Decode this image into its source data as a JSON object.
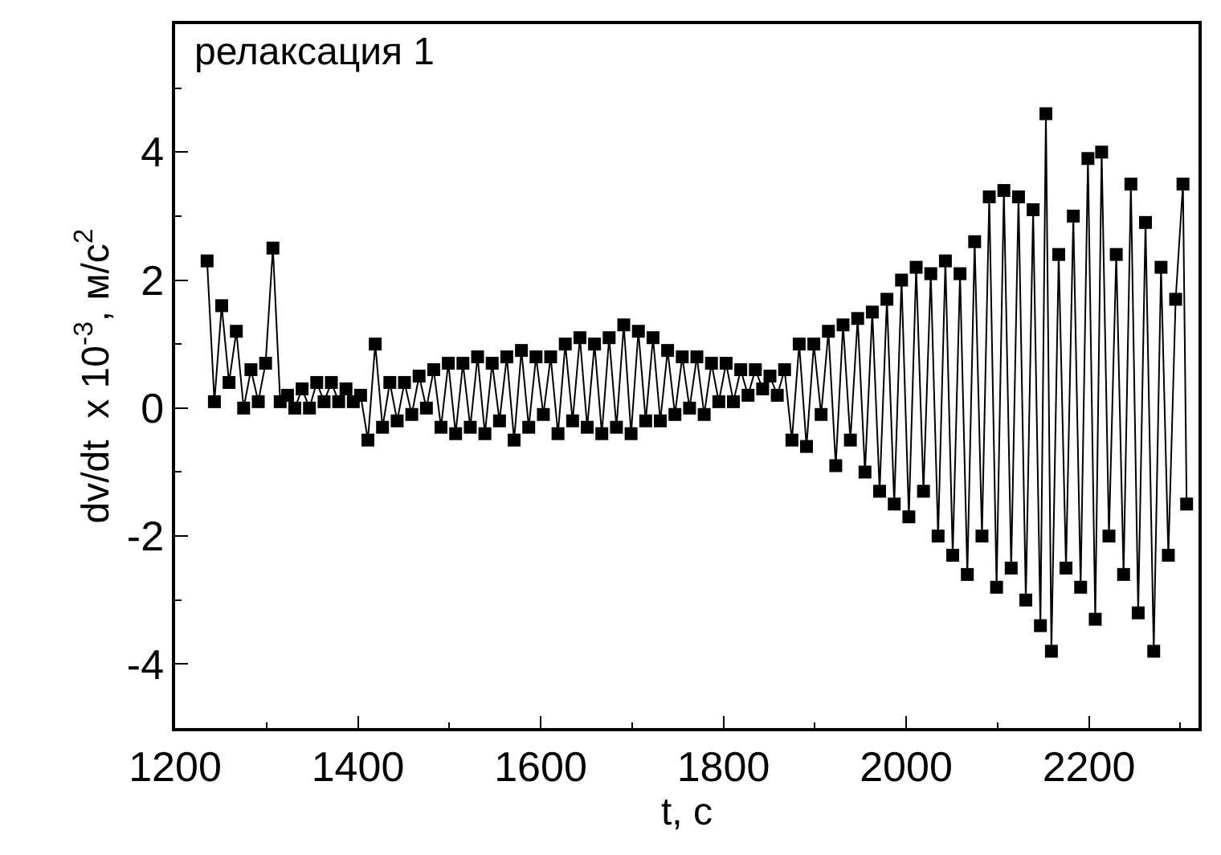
{
  "chart_data": {
    "type": "line",
    "xlabel": "t, с",
    "ylabel": "dv/dt  x 10$^{-3}$, м/с$^{2}$",
    "annotations": [
      "релаксация 1"
    ],
    "xlim": [
      1200,
      2320
    ],
    "xticks": [
      1200,
      1400,
      1600,
      1800,
      2000,
      2200
    ],
    "ylim": [
      -5,
      6
    ],
    "yticks": [
      -4,
      -2,
      0,
      2,
      4
    ],
    "grid": false,
    "marker": "square",
    "line_style": "solid",
    "series": [
      {
        "color": "#000000",
        "x": [
          1235,
          1243,
          1251,
          1259,
          1267,
          1275,
          1283,
          1291,
          1299,
          1307,
          1315,
          1323,
          1331,
          1339,
          1347,
          1355,
          1363,
          1371,
          1379,
          1387,
          1395,
          1403,
          1411,
          1419,
          1427,
          1435,
          1443,
          1451,
          1459,
          1467,
          1475,
          1483,
          1491,
          1499,
          1507,
          1515,
          1523,
          1531,
          1539,
          1547,
          1555,
          1563,
          1571,
          1579,
          1587,
          1595,
          1603,
          1611,
          1619,
          1627,
          1635,
          1643,
          1651,
          1659,
          1667,
          1675,
          1683,
          1691,
          1699,
          1707,
          1715,
          1723,
          1731,
          1739,
          1747,
          1755,
          1763,
          1771,
          1779,
          1787,
          1795,
          1803,
          1811,
          1819,
          1827,
          1835,
          1843,
          1851,
          1859,
          1867,
          1875,
          1883,
          1891,
          1899,
          1907,
          1915,
          1923,
          1931,
          1939,
          1947,
          1955,
          1963,
          1971,
          1979,
          1987,
          1995,
          2003,
          2011,
          2019,
          2027,
          2035,
          2043,
          2051,
          2059,
          2067,
          2075,
          2083,
          2091,
          2099,
          2107,
          2115,
          2123,
          2131,
          2139,
          2147,
          2153,
          2159,
          2167,
          2175,
          2183,
          2191,
          2199,
          2207,
          2214,
          2222,
          2230,
          2238,
          2246,
          2254,
          2262,
          2271,
          2279,
          2287,
          2295,
          2303,
          2307
        ],
        "values": [
          2.3,
          0.1,
          1.6,
          0.4,
          1.2,
          0.0,
          0.6,
          0.1,
          0.7,
          2.5,
          0.1,
          0.2,
          0.0,
          0.3,
          0.0,
          0.4,
          0.1,
          0.4,
          0.1,
          0.3,
          0.1,
          0.2,
          -0.5,
          1.0,
          -0.3,
          0.4,
          -0.2,
          0.4,
          -0.1,
          0.5,
          0.0,
          0.6,
          -0.3,
          0.7,
          -0.4,
          0.7,
          -0.3,
          0.8,
          -0.4,
          0.7,
          -0.2,
          0.8,
          -0.5,
          0.9,
          -0.3,
          0.8,
          -0.1,
          0.8,
          -0.4,
          1.0,
          -0.2,
          1.1,
          -0.3,
          1.0,
          -0.4,
          1.1,
          -0.3,
          1.3,
          -0.4,
          1.2,
          -0.2,
          1.1,
          -0.2,
          0.9,
          -0.1,
          0.8,
          0.0,
          0.8,
          -0.1,
          0.7,
          0.1,
          0.7,
          0.1,
          0.6,
          0.2,
          0.6,
          0.3,
          0.5,
          0.2,
          0.6,
          -0.5,
          1.0,
          -0.6,
          1.0,
          -0.1,
          1.2,
          -0.9,
          1.3,
          -0.5,
          1.4,
          -1.0,
          1.5,
          -1.3,
          1.7,
          -1.5,
          2.0,
          -1.7,
          2.2,
          -1.3,
          2.1,
          -2.0,
          2.3,
          -2.3,
          2.1,
          -2.6,
          2.6,
          -2.0,
          3.3,
          -2.8,
          3.4,
          -2.5,
          3.3,
          -3.0,
          3.1,
          -3.4,
          4.6,
          -3.8,
          2.4,
          -2.5,
          3.0,
          -2.8,
          3.9,
          -3.3,
          4.0,
          -2.0,
          2.4,
          -2.6,
          3.5,
          -3.2,
          2.9,
          -3.8,
          2.2,
          -2.3,
          1.7,
          3.5,
          -1.5
        ]
      }
    ]
  }
}
